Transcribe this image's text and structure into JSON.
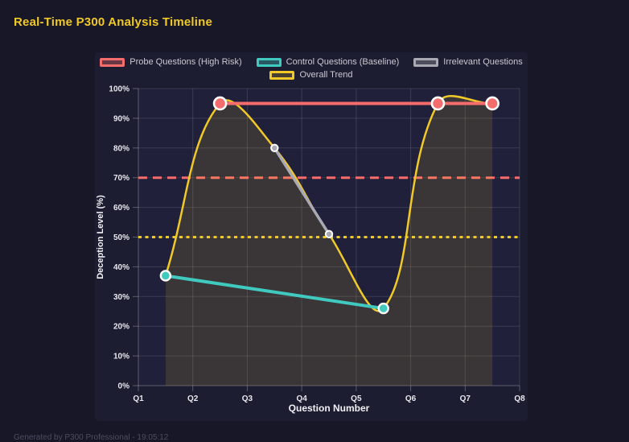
{
  "header": {
    "title": "Real-Time P300 Analysis Timeline",
    "title_color": "#f0c929"
  },
  "footer": {
    "note": "Generated by P300 Professional - 19:05:12"
  },
  "colors": {
    "page_bg": "#171727",
    "panel_bg": "#1d1d31",
    "plot_bg": "#20203a",
    "probe_red": "#f56c6c",
    "control_teal": "#40c9bf",
    "irrelevant_gray": "#a9a9b3",
    "trend_yellow": "#f0c929",
    "tick_text": "#e8e8ee",
    "axis_title_text": "#f0f0f5"
  },
  "chart_data": {
    "type": "line",
    "title": "Real-Time P300 Analysis Timeline",
    "xlabel": "Question Number",
    "ylabel": "Deception Level (%)",
    "x_categories": [
      "Q1",
      "Q2",
      "Q3",
      "Q4",
      "Q5",
      "Q6",
      "Q7",
      "Q8"
    ],
    "x_range": [
      1,
      8
    ],
    "ylim": [
      0,
      100
    ],
    "y_tick_step": 10,
    "y_tick_suffix": "%",
    "grid": true,
    "legend_position": "top",
    "legend_rows": [
      [
        0,
        1,
        2
      ],
      [
        3
      ]
    ],
    "series": [
      {
        "name": "Probe Questions (High Risk)",
        "color": "#f56c6c",
        "fill_color": "rgba(245,108,108,0.35)",
        "points": [
          {
            "x": 2.5,
            "y": 95
          },
          {
            "x": 6.5,
            "y": 95
          },
          {
            "x": 7.5,
            "y": 95
          }
        ],
        "line_width": 4,
        "point_radius": 7.5,
        "point_border": 2.6,
        "smooth": false
      },
      {
        "name": "Control Questions (Baseline)",
        "color": "#40c9bf",
        "fill_color": "rgba(64,201,191,0.35)",
        "points": [
          {
            "x": 1.5,
            "y": 37
          },
          {
            "x": 5.5,
            "y": 26
          }
        ],
        "line_width": 4,
        "point_radius": 6,
        "point_border": 2.4,
        "smooth": false
      },
      {
        "name": "Irrelevant Questions",
        "color": "#a9a9b3",
        "fill_color": "rgba(169,169,179,0.35)",
        "points": [
          {
            "x": 3.5,
            "y": 80
          },
          {
            "x": 4.5,
            "y": 51
          }
        ],
        "line_width": 3.5,
        "point_radius": 4.2,
        "point_border": 2,
        "smooth": false
      },
      {
        "name": "Overall Trend",
        "color": "#f0c929",
        "fill_color": "rgba(240,201,41,0.2)",
        "points": [
          {
            "x": 1.5,
            "y": 37
          },
          {
            "x": 2.5,
            "y": 95
          },
          {
            "x": 3.5,
            "y": 80
          },
          {
            "x": 4.5,
            "y": 51
          },
          {
            "x": 5.5,
            "y": 26
          },
          {
            "x": 6.5,
            "y": 95
          },
          {
            "x": 7.5,
            "y": 95
          }
        ],
        "line_width": 2.5,
        "point_radius": 0,
        "point_border": 0,
        "smooth": true,
        "tension": 0.4,
        "area_fill": "rgba(240,201,41,0.13)"
      }
    ],
    "thresholds": [
      {
        "y": 70,
        "color": "#f56c6c",
        "dash": [
          11,
          7
        ],
        "width": 3
      },
      {
        "y": 50,
        "color": "#f0c929",
        "dash": [
          4,
          4.5
        ],
        "width": 3
      }
    ]
  }
}
